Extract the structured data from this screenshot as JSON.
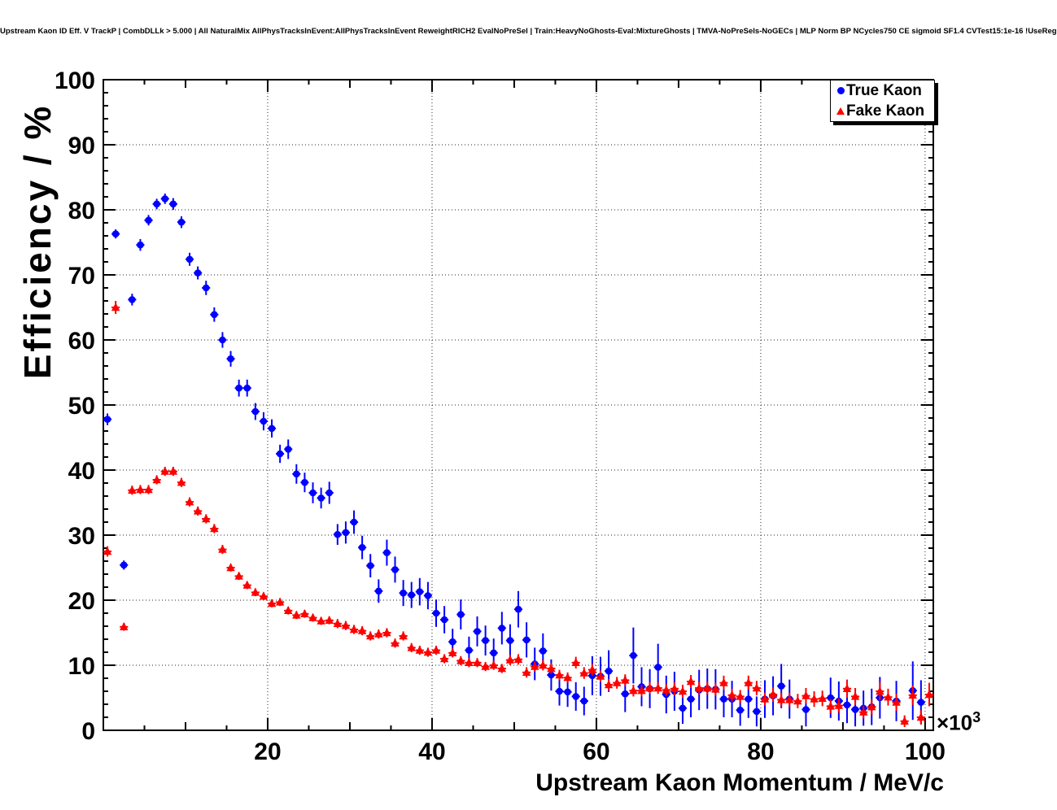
{
  "chart_data": {
    "type": "scatter",
    "title": "Upstream Kaon ID Eff. V TrackP | CombDLLk > 5.000 | All NaturalMix AllPhysTracksInEvent:AllPhysTracksInEvent ReweightRICH2 EvalNoPreSel | Train:HeavyNoGhosts-Eval:MixtureGhosts | TMVA-NoPreSels-NoGECs | MLP Norm BP NCycles750 CE sigmoid SF1.4 CVTest15:1e-16 !UseReg",
    "xlabel": "Upstream Kaon Momentum / MeV/c",
    "ylabel": "Efficiency / %",
    "x_scale_prefix": "×10",
    "x_scale_exponent": "3",
    "x_unit_scale": 1000,
    "xlim": [
      0,
      101
    ],
    "ylim": [
      0,
      100
    ],
    "xticks": [
      20,
      40,
      60,
      80,
      100
    ],
    "yticks": [
      0,
      10,
      20,
      30,
      40,
      50,
      60,
      70,
      80,
      90,
      100
    ],
    "x_minor_step": 5,
    "y_minor_step": 2,
    "grid": true,
    "legend_position": "top-right",
    "colors": {
      "background": "#ffffff",
      "frame": "#000000",
      "grid": "#000000",
      "true_kaon": "#0000ff",
      "fake_kaon": "#ff0000"
    },
    "point_format": [
      "momentum_GeV",
      "efficiency_pct",
      "y_error_pct"
    ],
    "x_bin_half_width": 0.5,
    "series": [
      {
        "name": "True Kaon",
        "color": "#0000ff",
        "marker": "circle",
        "points": [
          [
            0.5,
            47.8,
            0.9
          ],
          [
            1.5,
            76.3,
            0.7
          ],
          [
            2.5,
            25.4,
            0.7
          ],
          [
            3.5,
            66.2,
            0.9
          ],
          [
            4.5,
            74.6,
            0.9
          ],
          [
            5.5,
            78.4,
            0.8
          ],
          [
            6.5,
            80.9,
            0.8
          ],
          [
            7.5,
            81.7,
            0.8
          ],
          [
            8.5,
            80.9,
            0.9
          ],
          [
            9.5,
            78.1,
            0.9
          ],
          [
            10.5,
            72.4,
            1.0
          ],
          [
            11.5,
            70.3,
            1.0
          ],
          [
            12.5,
            68.0,
            1.1
          ],
          [
            13.5,
            63.9,
            1.1
          ],
          [
            14.5,
            60.0,
            1.2
          ],
          [
            15.5,
            57.1,
            1.2
          ],
          [
            16.5,
            52.6,
            1.3
          ],
          [
            17.5,
            52.6,
            1.3
          ],
          [
            18.5,
            49.0,
            1.3
          ],
          [
            19.5,
            47.5,
            1.4
          ],
          [
            20.5,
            46.4,
            1.4
          ],
          [
            21.5,
            42.5,
            1.4
          ],
          [
            22.5,
            43.2,
            1.5
          ],
          [
            23.5,
            39.4,
            1.5
          ],
          [
            24.5,
            38.1,
            1.5
          ],
          [
            25.5,
            36.5,
            1.6
          ],
          [
            26.5,
            35.7,
            1.6
          ],
          [
            27.5,
            36.5,
            1.7
          ],
          [
            28.5,
            30.1,
            1.6
          ],
          [
            29.5,
            30.4,
            1.7
          ],
          [
            30.5,
            32.0,
            1.8
          ],
          [
            31.5,
            28.1,
            1.8
          ],
          [
            32.5,
            25.3,
            1.8
          ],
          [
            33.5,
            21.4,
            1.8
          ],
          [
            34.5,
            27.3,
            2.0
          ],
          [
            35.5,
            24.7,
            2.0
          ],
          [
            36.5,
            21.1,
            2.0
          ],
          [
            37.5,
            20.8,
            2.0
          ],
          [
            38.5,
            21.3,
            2.1
          ],
          [
            39.5,
            20.7,
            2.1
          ],
          [
            40.5,
            18.0,
            2.1
          ],
          [
            41.5,
            17.0,
            2.1
          ],
          [
            42.5,
            13.6,
            2.0
          ],
          [
            43.5,
            17.8,
            2.3
          ],
          [
            44.5,
            12.3,
            2.1
          ],
          [
            45.5,
            15.2,
            2.3
          ],
          [
            46.5,
            13.8,
            2.3
          ],
          [
            47.5,
            11.9,
            2.2
          ],
          [
            48.5,
            15.7,
            2.5
          ],
          [
            49.5,
            13.8,
            2.5
          ],
          [
            50.5,
            18.6,
            2.8
          ],
          [
            51.5,
            13.9,
            2.7
          ],
          [
            52.5,
            10.2,
            2.5
          ],
          [
            53.5,
            12.2,
            2.7
          ],
          [
            54.5,
            8.5,
            2.4
          ],
          [
            55.5,
            6.0,
            2.2
          ],
          [
            56.5,
            5.9,
            2.3
          ],
          [
            57.5,
            5.2,
            2.2
          ],
          [
            58.5,
            4.5,
            2.2
          ],
          [
            59.5,
            8.4,
            3.0
          ],
          [
            60.5,
            8.3,
            3.0
          ],
          [
            61.5,
            9.1,
            3.2
          ],
          [
            63.5,
            5.6,
            2.8
          ],
          [
            64.5,
            11.5,
            4.3
          ],
          [
            65.5,
            6.7,
            3.0
          ],
          [
            66.5,
            6.4,
            3.0
          ],
          [
            67.5,
            9.7,
            3.6
          ],
          [
            68.5,
            5.5,
            2.9
          ],
          [
            69.5,
            6.0,
            3.0
          ],
          [
            70.5,
            3.4,
            2.4
          ],
          [
            71.5,
            4.8,
            2.8
          ],
          [
            72.5,
            6.2,
            3.1
          ],
          [
            73.5,
            6.4,
            3.1
          ],
          [
            74.5,
            6.3,
            3.1
          ],
          [
            75.5,
            4.8,
            2.8
          ],
          [
            76.5,
            4.8,
            2.8
          ],
          [
            77.5,
            3.1,
            2.4
          ],
          [
            78.5,
            4.8,
            2.9
          ],
          [
            79.5,
            2.9,
            2.3
          ],
          [
            80.5,
            4.8,
            2.9
          ],
          [
            81.5,
            5.3,
            3.0
          ],
          [
            82.5,
            6.8,
            3.4
          ],
          [
            83.5,
            4.8,
            3.0
          ],
          [
            85.5,
            3.2,
            2.6
          ],
          [
            88.5,
            5.0,
            3.1
          ],
          [
            89.5,
            4.5,
            3.0
          ],
          [
            90.5,
            3.9,
            2.8
          ],
          [
            91.5,
            3.2,
            2.6
          ],
          [
            92.5,
            3.4,
            2.7
          ],
          [
            93.5,
            3.6,
            2.8
          ],
          [
            94.5,
            5.0,
            3.2
          ],
          [
            96.5,
            4.5,
            3.1
          ],
          [
            98.5,
            6.1,
            4.5
          ],
          [
            99.5,
            4.3,
            3.4
          ]
        ]
      },
      {
        "name": "Fake Kaon",
        "color": "#ff0000",
        "marker": "triangle-up",
        "points": [
          [
            0.5,
            27.5,
            0.8
          ],
          [
            1.5,
            65.0,
            1.0
          ],
          [
            2.5,
            15.9,
            0.6
          ],
          [
            3.5,
            36.9,
            0.7
          ],
          [
            4.5,
            37.0,
            0.7
          ],
          [
            5.5,
            37.0,
            0.7
          ],
          [
            6.5,
            38.5,
            0.7
          ],
          [
            7.5,
            39.8,
            0.7
          ],
          [
            8.5,
            39.8,
            0.7
          ],
          [
            9.5,
            38.1,
            0.7
          ],
          [
            10.5,
            35.1,
            0.7
          ],
          [
            11.5,
            33.7,
            0.7
          ],
          [
            12.5,
            32.5,
            0.7
          ],
          [
            13.5,
            31.0,
            0.7
          ],
          [
            14.5,
            27.8,
            0.7
          ],
          [
            15.5,
            25.0,
            0.6
          ],
          [
            16.5,
            23.7,
            0.6
          ],
          [
            17.5,
            22.3,
            0.6
          ],
          [
            18.5,
            21.2,
            0.6
          ],
          [
            19.5,
            20.6,
            0.6
          ],
          [
            20.5,
            19.5,
            0.6
          ],
          [
            21.5,
            19.7,
            0.6
          ],
          [
            22.5,
            18.4,
            0.6
          ],
          [
            23.5,
            17.7,
            0.6
          ],
          [
            24.5,
            17.9,
            0.6
          ],
          [
            25.5,
            17.3,
            0.6
          ],
          [
            26.5,
            16.8,
            0.6
          ],
          [
            27.5,
            16.9,
            0.6
          ],
          [
            28.5,
            16.4,
            0.7
          ],
          [
            29.5,
            16.1,
            0.7
          ],
          [
            30.5,
            15.5,
            0.7
          ],
          [
            31.5,
            15.3,
            0.7
          ],
          [
            32.5,
            14.5,
            0.7
          ],
          [
            33.5,
            14.8,
            0.7
          ],
          [
            34.5,
            15.0,
            0.7
          ],
          [
            35.5,
            13.4,
            0.7
          ],
          [
            36.5,
            14.5,
            0.7
          ],
          [
            37.5,
            12.7,
            0.7
          ],
          [
            38.5,
            12.3,
            0.7
          ],
          [
            39.5,
            12.0,
            0.7
          ],
          [
            40.5,
            12.3,
            0.7
          ],
          [
            41.5,
            11.0,
            0.7
          ],
          [
            42.5,
            11.9,
            0.7
          ],
          [
            43.5,
            10.7,
            0.7
          ],
          [
            44.5,
            10.4,
            0.7
          ],
          [
            45.5,
            10.4,
            0.7
          ],
          [
            46.5,
            9.8,
            0.7
          ],
          [
            47.5,
            10.0,
            0.7
          ],
          [
            48.5,
            9.5,
            0.7
          ],
          [
            49.5,
            10.8,
            0.8
          ],
          [
            50.5,
            10.9,
            0.8
          ],
          [
            51.5,
            8.9,
            0.8
          ],
          [
            52.5,
            9.8,
            0.8
          ],
          [
            53.5,
            10.0,
            0.8
          ],
          [
            54.5,
            9.5,
            0.8
          ],
          [
            55.5,
            8.5,
            0.8
          ],
          [
            56.5,
            8.1,
            0.8
          ],
          [
            57.5,
            10.4,
            0.9
          ],
          [
            58.5,
            8.8,
            0.9
          ],
          [
            59.5,
            9.3,
            0.9
          ],
          [
            60.5,
            8.3,
            0.9
          ],
          [
            61.5,
            7.0,
            0.9
          ],
          [
            62.5,
            7.3,
            0.9
          ],
          [
            63.5,
            7.7,
            0.9
          ],
          [
            64.5,
            6.1,
            0.9
          ],
          [
            65.5,
            6.1,
            0.9
          ],
          [
            66.5,
            6.5,
            0.9
          ],
          [
            67.5,
            6.5,
            0.9
          ],
          [
            68.5,
            6.2,
            0.9
          ],
          [
            69.5,
            6.4,
            1.0
          ],
          [
            70.5,
            6.0,
            1.0
          ],
          [
            71.5,
            7.5,
            1.0
          ],
          [
            72.5,
            6.5,
            1.0
          ],
          [
            73.5,
            6.5,
            1.0
          ],
          [
            74.5,
            6.3,
            1.0
          ],
          [
            75.5,
            7.3,
            1.1
          ],
          [
            76.5,
            5.4,
            1.0
          ],
          [
            77.5,
            5.2,
            1.0
          ],
          [
            78.5,
            7.3,
            1.1
          ],
          [
            79.5,
            6.5,
            1.1
          ],
          [
            80.5,
            4.8,
            1.0
          ],
          [
            81.5,
            5.5,
            1.1
          ],
          [
            82.5,
            4.7,
            1.1
          ],
          [
            83.5,
            4.7,
            1.1
          ],
          [
            84.5,
            4.5,
            1.1
          ],
          [
            85.5,
            5.3,
            1.2
          ],
          [
            86.5,
            4.8,
            1.2
          ],
          [
            87.5,
            4.9,
            1.2
          ],
          [
            88.5,
            3.7,
            1.1
          ],
          [
            89.5,
            3.8,
            1.1
          ],
          [
            90.5,
            6.4,
            1.4
          ],
          [
            91.5,
            5.2,
            1.3
          ],
          [
            92.5,
            2.8,
            1.0
          ],
          [
            93.5,
            3.6,
            1.2
          ],
          [
            94.5,
            6.0,
            1.4
          ],
          [
            95.5,
            5.1,
            1.3
          ],
          [
            96.5,
            4.3,
            1.3
          ],
          [
            97.5,
            1.4,
            0.9
          ],
          [
            98.5,
            5.4,
            1.5
          ],
          [
            99.5,
            2.0,
            1.1
          ],
          [
            100.5,
            5.5,
            1.8
          ]
        ]
      }
    ]
  }
}
